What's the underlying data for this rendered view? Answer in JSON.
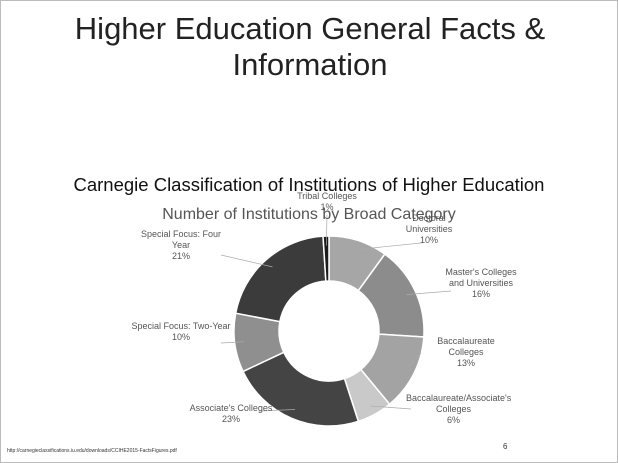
{
  "slide": {
    "title": "Higher Education General Facts & Information",
    "subtitle": "Carnegie Classification of Institutions of Higher Education",
    "source": "http://carnegieclassifications.iu.edu/downloads/CCIHE2015-FactsFigures.pdf",
    "page_number": "6"
  },
  "chart_data": {
    "type": "donut",
    "title": "Number of Institutions by Broad Category",
    "categories": [
      "Doctoral Universities",
      "Master's Colleges and Universities",
      "Baccalaureate Colleges",
      "Baccalaureate/Associate's Colleges",
      "Associate's Colleges",
      "Special Focus: Two-Year",
      "Special Focus: Four Year",
      "Tribal Colleges"
    ],
    "values": [
      10,
      16,
      13,
      6,
      23,
      10,
      21,
      1
    ],
    "value_labels": [
      "10%",
      "16%",
      "13%",
      "6%",
      "23%",
      "10%",
      "21%",
      "1%"
    ],
    "colors": [
      "#a6a6a6",
      "#8c8c8c",
      "#a3a3a3",
      "#c9c9c9",
      "#444444",
      "#8f8f8f",
      "#3b3b3b",
      "#1c1c1c"
    ]
  }
}
